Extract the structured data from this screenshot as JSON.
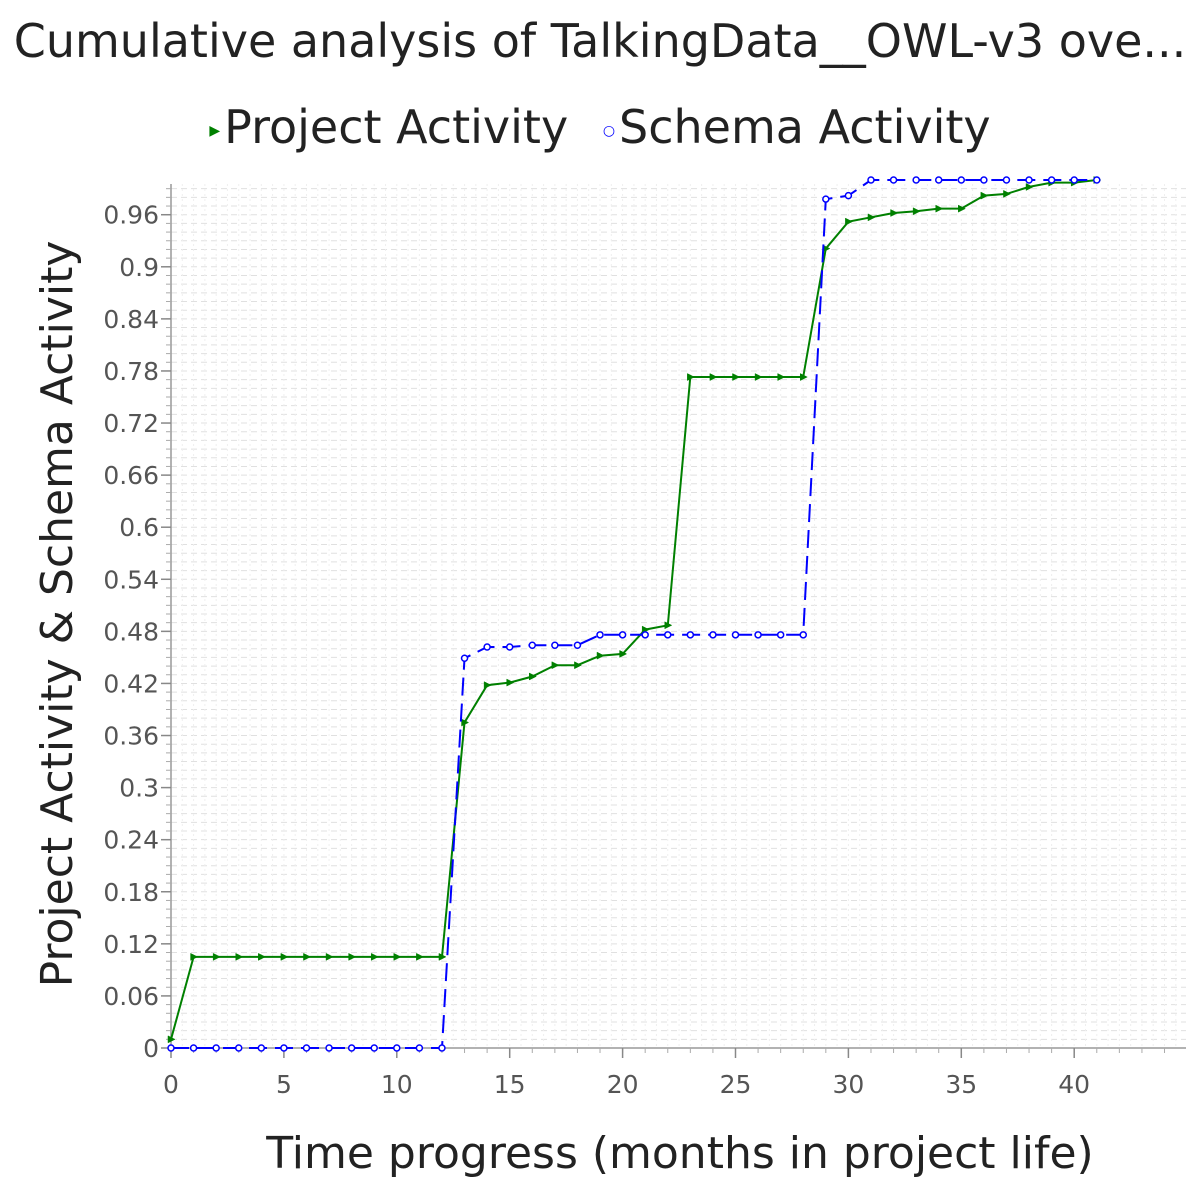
{
  "chart_data": {
    "type": "line",
    "title": "Cumulative analysis of TalkingData__OWL-v3 ove...",
    "xlabel": "Time progress (months in project life)",
    "ylabel": "Project Activity & Schema Activity",
    "xlim": [
      0,
      45
    ],
    "ylim": [
      0,
      1.0
    ],
    "xticks": [
      0,
      5,
      10,
      15,
      20,
      25,
      30,
      35,
      40
    ],
    "yticks": [
      0,
      0.06,
      0.12,
      0.18,
      0.24,
      0.3,
      0.36,
      0.42,
      0.48,
      0.54,
      0.6,
      0.66,
      0.72,
      0.78,
      0.84,
      0.9,
      0.96
    ],
    "ytick_labels": [
      "0",
      "0.06",
      "0.12",
      "0.18",
      "0.24",
      "0.3",
      "0.36",
      "0.42",
      "0.48",
      "0.54",
      "0.6",
      "0.66",
      "0.72",
      "0.78",
      "0.84",
      "0.9",
      "0.96"
    ],
    "grid": true,
    "legend_position": "top",
    "series": [
      {
        "name": "Project Activity",
        "color": "#008000",
        "marker": "triangle-right",
        "line_style": "solid",
        "x": [
          0,
          1,
          2,
          3,
          4,
          5,
          6,
          7,
          8,
          9,
          10,
          11,
          12,
          13,
          14,
          15,
          16,
          17,
          18,
          19,
          20,
          21,
          22,
          23,
          24,
          25,
          26,
          27,
          28,
          29,
          30,
          31,
          32,
          33,
          34,
          35,
          36,
          37,
          38,
          39,
          40,
          41
        ],
        "y": [
          0.01,
          0.105,
          0.105,
          0.105,
          0.105,
          0.105,
          0.105,
          0.105,
          0.105,
          0.105,
          0.105,
          0.105,
          0.105,
          0.375,
          0.418,
          0.421,
          0.428,
          0.441,
          0.441,
          0.452,
          0.454,
          0.482,
          0.487,
          0.773,
          0.773,
          0.773,
          0.773,
          0.773,
          0.773,
          0.921,
          0.952,
          0.957,
          0.962,
          0.964,
          0.967,
          0.967,
          0.982,
          0.984,
          0.992,
          0.997,
          0.997,
          1.0
        ]
      },
      {
        "name": "Schema Activity",
        "color": "#0000ff",
        "marker": "circle",
        "line_style": "dashed",
        "x": [
          0,
          1,
          2,
          3,
          4,
          5,
          6,
          7,
          8,
          9,
          10,
          11,
          12,
          13,
          14,
          15,
          16,
          17,
          18,
          19,
          20,
          21,
          22,
          23,
          24,
          25,
          26,
          27,
          28,
          29,
          30,
          31,
          32,
          33,
          34,
          35,
          36,
          37,
          38,
          39,
          40,
          41
        ],
        "y": [
          0,
          0,
          0,
          0,
          0,
          0,
          0,
          0,
          0,
          0,
          0,
          0,
          0,
          0.449,
          0.462,
          0.462,
          0.464,
          0.464,
          0.464,
          0.476,
          0.476,
          0.476,
          0.476,
          0.476,
          0.476,
          0.476,
          0.476,
          0.476,
          0.476,
          0.978,
          0.982,
          1.0,
          1.0,
          1.0,
          1.0,
          1.0,
          1.0,
          1.0,
          1.0,
          1.0,
          1.0,
          1.0
        ]
      }
    ]
  }
}
